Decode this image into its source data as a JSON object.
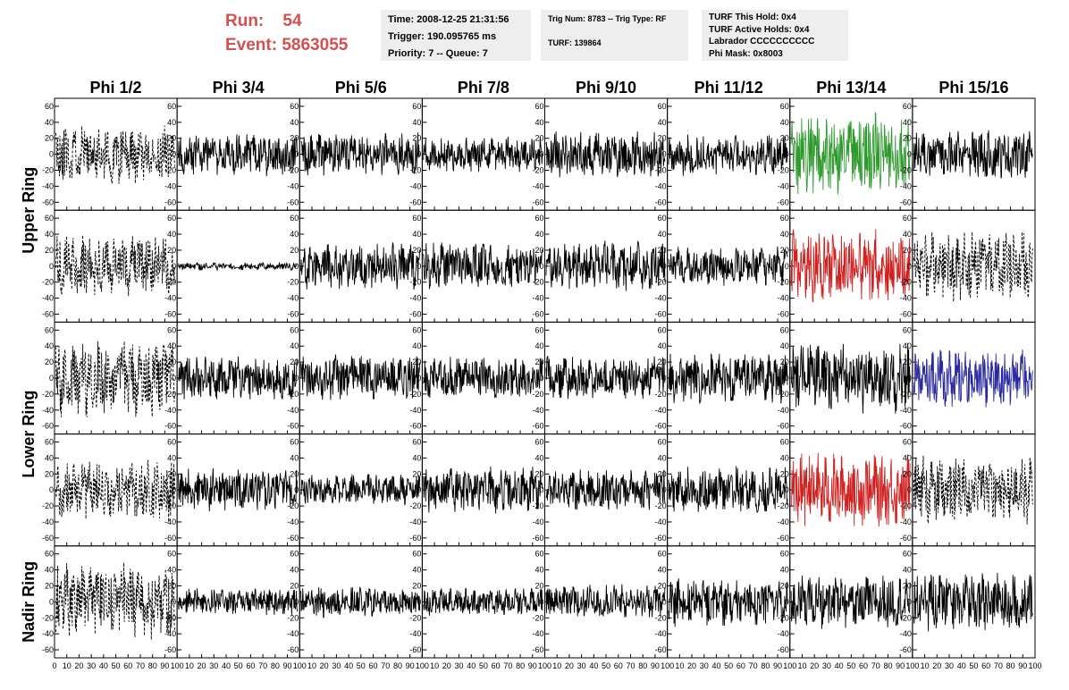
{
  "header": {
    "run_label": "Run:",
    "run_value": "54",
    "event_label": "Event:",
    "event_value": "5863055",
    "time_lines": [
      "Time: 2008-12-25 21:31:56",
      "Trigger: 190.095765 ms",
      "Priority: 7 -- Queue: 7"
    ],
    "trig_lines": [
      "Trig Num: 8783 -- Trig Type: RF",
      "TURF: 139864"
    ],
    "turf_lines": [
      "TURF This Hold: 0x4",
      "TURF Active Holds: 0x4",
      "Labrador CCCCCCCCCC",
      "Phi Mask: 0x8003"
    ]
  },
  "chart_data": {
    "type": "line",
    "title": "",
    "columns": [
      "Phi 1/2",
      "Phi 3/4",
      "Phi 5/6",
      "Phi 7/8",
      "Phi 9/10",
      "Phi 11/12",
      "Phi 13/14",
      "Phi 15/16"
    ],
    "rings": [
      "Upper Ring",
      "Lower Ring",
      "Nadir Ring"
    ],
    "rows": 5,
    "ring_row_spans": [
      [
        0,
        1
      ],
      [
        2,
        3
      ],
      [
        4,
        4
      ]
    ],
    "xlim": [
      0,
      100
    ],
    "ylim": [
      -70,
      70
    ],
    "xticks": [
      0,
      10,
      20,
      30,
      40,
      50,
      60,
      70,
      80,
      90,
      100
    ],
    "xtick_labels": [
      "0",
      "10",
      "20",
      "30",
      "40",
      "50",
      "60",
      "70",
      "80",
      "90",
      "100"
    ],
    "yticks": [
      60,
      40,
      20,
      0,
      -20,
      -40,
      -60
    ],
    "ytick_labels": [
      "60",
      "40",
      "20",
      "0",
      "-20",
      "-40",
      "-60"
    ],
    "colors": {
      "black": "#000000",
      "green": "#2e9a2e",
      "red": "#d02020",
      "blue": "#2828a0"
    },
    "panels": [
      [
        {
          "color": "black",
          "style": "dashed",
          "amp": 30,
          "seed": 11
        },
        {
          "color": "black",
          "style": "solid",
          "amp": 22,
          "seed": 12
        },
        {
          "color": "black",
          "style": "solid",
          "amp": 22,
          "seed": 13
        },
        {
          "color": "black",
          "style": "solid",
          "amp": 18,
          "seed": 14
        },
        {
          "color": "black",
          "style": "solid",
          "amp": 24,
          "seed": 15
        },
        {
          "color": "black",
          "style": "solid",
          "amp": 22,
          "seed": 16
        },
        {
          "color": "green",
          "style": "solid",
          "amp": 42,
          "seed": 17
        },
        {
          "color": "black",
          "style": "solid",
          "amp": 26,
          "seed": 18
        }
      ],
      [
        {
          "color": "black",
          "style": "dashed",
          "amp": 32,
          "seed": 21
        },
        {
          "color": "black",
          "style": "solid",
          "amp": 4,
          "seed": 22
        },
        {
          "color": "black",
          "style": "solid",
          "amp": 24,
          "seed": 23
        },
        {
          "color": "black",
          "style": "solid",
          "amp": 24,
          "seed": 24
        },
        {
          "color": "black",
          "style": "solid",
          "amp": 26,
          "seed": 25
        },
        {
          "color": "black",
          "style": "solid",
          "amp": 20,
          "seed": 26
        },
        {
          "color": "red",
          "style": "solid",
          "amp": 38,
          "seed": 27
        },
        {
          "color": "black",
          "style": "dashed",
          "amp": 38,
          "seed": 28
        }
      ],
      [
        {
          "color": "black",
          "style": "dashed",
          "amp": 40,
          "seed": 31
        },
        {
          "color": "black",
          "style": "solid",
          "amp": 22,
          "seed": 32
        },
        {
          "color": "black",
          "style": "solid",
          "amp": 24,
          "seed": 33
        },
        {
          "color": "black",
          "style": "solid",
          "amp": 22,
          "seed": 34
        },
        {
          "color": "black",
          "style": "solid",
          "amp": 22,
          "seed": 35
        },
        {
          "color": "black",
          "style": "solid",
          "amp": 26,
          "seed": 36
        },
        {
          "color": "black",
          "style": "solid",
          "amp": 36,
          "seed": 37
        },
        {
          "color": "blue",
          "style": "solid",
          "amp": 30,
          "seed": 38
        }
      ],
      [
        {
          "color": "black",
          "style": "dashed",
          "amp": 32,
          "seed": 41
        },
        {
          "color": "black",
          "style": "solid",
          "amp": 22,
          "seed": 42
        },
        {
          "color": "black",
          "style": "solid",
          "amp": 16,
          "seed": 43
        },
        {
          "color": "black",
          "style": "solid",
          "amp": 24,
          "seed": 44
        },
        {
          "color": "black",
          "style": "solid",
          "amp": 22,
          "seed": 45
        },
        {
          "color": "black",
          "style": "solid",
          "amp": 24,
          "seed": 46
        },
        {
          "color": "red",
          "style": "solid",
          "amp": 38,
          "seed": 47
        },
        {
          "color": "black",
          "style": "dashed",
          "amp": 36,
          "seed": 48
        }
      ],
      [
        {
          "color": "black",
          "style": "dashed",
          "amp": 40,
          "seed": 51
        },
        {
          "color": "black",
          "style": "solid",
          "amp": 14,
          "seed": 52
        },
        {
          "color": "black",
          "style": "solid",
          "amp": 16,
          "seed": 53
        },
        {
          "color": "black",
          "style": "solid",
          "amp": 14,
          "seed": 54
        },
        {
          "color": "black",
          "style": "solid",
          "amp": 18,
          "seed": 55
        },
        {
          "color": "black",
          "style": "solid",
          "amp": 26,
          "seed": 56
        },
        {
          "color": "black",
          "style": "solid",
          "amp": 28,
          "seed": 57
        },
        {
          "color": "black",
          "style": "solid",
          "amp": 30,
          "seed": 58
        }
      ]
    ]
  }
}
